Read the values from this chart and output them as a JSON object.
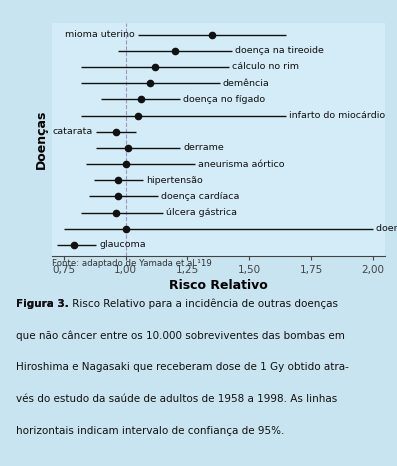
{
  "diseases": [
    "mioma uterino",
    "doença na tireoide",
    "cálculo no rim",
    "demência",
    "doença no fígado",
    "infarto do miocárdio",
    "catarata",
    "derrame",
    "aneurisma aórtico",
    "hipertensão",
    "doença cardíaca",
    "úlcera gástrica",
    "doença de Parkinson",
    "glaucoma"
  ],
  "rr": [
    1.35,
    1.2,
    1.12,
    1.1,
    1.06,
    1.05,
    0.96,
    1.01,
    1.0,
    0.97,
    0.97,
    0.96,
    1.0,
    0.79
  ],
  "ci_low": [
    1.05,
    0.97,
    0.82,
    0.82,
    0.9,
    0.82,
    0.88,
    0.88,
    0.84,
    0.87,
    0.85,
    0.82,
    0.75,
    0.72
  ],
  "ci_high": [
    1.65,
    1.43,
    1.42,
    1.38,
    1.22,
    1.65,
    1.04,
    1.22,
    1.28,
    1.07,
    1.13,
    1.15,
    2.0,
    0.88
  ],
  "label_side": [
    "left",
    "right",
    "right",
    "right",
    "right",
    "right",
    "left",
    "right",
    "right",
    "right",
    "right",
    "right",
    "right",
    "right"
  ],
  "xlabel": "Risco Relativo",
  "ylabel": "Doenças",
  "xlim": [
    0.7,
    2.05
  ],
  "xticks": [
    0.75,
    1.0,
    1.25,
    1.5,
    1.75,
    2.0
  ],
  "xtick_labels": [
    "0,75",
    "1,00",
    "1,25",
    "1,50",
    "1,75",
    "2,00"
  ],
  "source": "Fonte: adaptado de Yamada et al.¹19",
  "caption_bold": "Figura 3.",
  "caption_text": " Risco Relativo para a incidência de outras doenças que não câncer entre os 10.000 sobreviventes das bombas em Hiroshima e Nagasaki que receberam dose de 1 Gy obtido atra-vés do estudo da saúde de adultos de 1958 a 1998. As linhas horizontais indicam intervalo de confiança de 95%.",
  "outer_bg": "#c8e4f0",
  "plot_bg": "#d4ecf7",
  "line_color": "#111111",
  "dot_color": "#111111",
  "vline_color": "#9999bb",
  "axis_color": "#444444",
  "caption_bg": "#ffffff"
}
